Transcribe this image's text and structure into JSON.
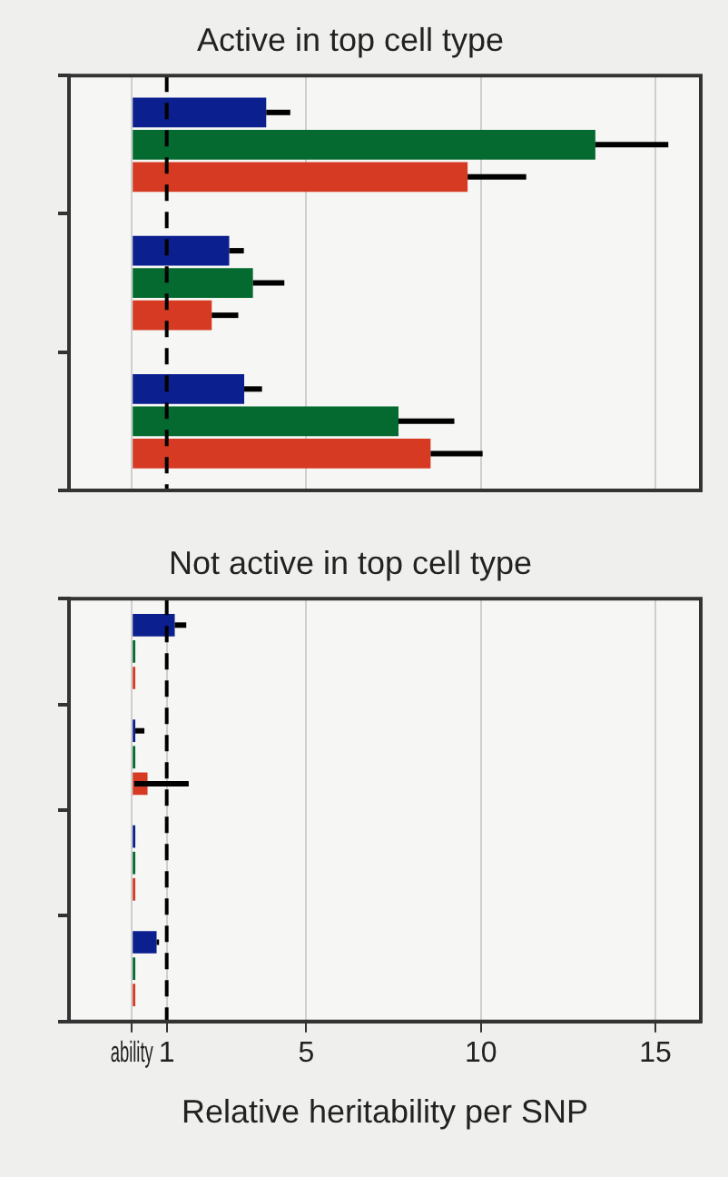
{
  "chart_data": [
    {
      "type": "bar",
      "orientation": "horizontal",
      "title": "Active in top cell type",
      "categories": [
        null,
        null,
        null
      ],
      "series": [
        {
          "color": "#0b1f8e",
          "values": [
            3.85,
            2.79,
            3.22
          ],
          "errors": [
            [
              3.85,
              4.54
            ],
            [
              2.79,
              3.21
            ],
            [
              3.22,
              3.73
            ]
          ]
        },
        {
          "color": "#046a2f",
          "values": [
            13.28,
            3.47,
            7.64
          ],
          "errors": [
            [
              13.28,
              15.37
            ],
            [
              3.47,
              4.37
            ],
            [
              7.64,
              9.24
            ]
          ]
        },
        {
          "color": "#d63a23",
          "values": [
            9.62,
            2.29,
            8.56
          ],
          "errors": [
            [
              9.62,
              11.3
            ],
            [
              2.29,
              3.05
            ],
            [
              8.56,
              10.05
            ]
          ]
        }
      ],
      "xlim": [
        -1.8,
        16.3
      ],
      "xticks": [
        0,
        5,
        10,
        15
      ],
      "grid": "x",
      "tick_labels": false,
      "ref_lines": [
        {
          "axis": "x",
          "value": 1,
          "label": null,
          "color": "#000000",
          "line_style": "dashed"
        }
      ]
    },
    {
      "type": "bar",
      "orientation": "horizontal",
      "title": "Not active in top cell type",
      "xlabel": "Relative heritability per SNP",
      "categories": [
        null,
        null,
        null,
        null
      ],
      "series": [
        {
          "color": "#0b1f8e",
          "values": [
            1.23,
            0.1,
            0.1,
            0.71
          ],
          "errors": [
            [
              1.23,
              1.56
            ],
            [
              0.1,
              0.36
            ],
            null,
            [
              0.71,
              0.78
            ]
          ]
        },
        {
          "color": "#046a2f",
          "values": [
            0.1,
            0.1,
            0.1,
            0.1
          ],
          "errors": [
            null,
            null,
            null,
            null
          ]
        },
        {
          "color": "#d63a23",
          "values": [
            0.1,
            0.45,
            0.1,
            0.1
          ],
          "errors": [
            null,
            [
              0.07,
              1.63
            ],
            null,
            null
          ]
        }
      ],
      "xlim": [
        -1.8,
        16.3
      ],
      "xticks": [
        {
          "value": 0,
          "label": "ability"
        },
        1,
        5,
        10,
        15
      ],
      "grid": "x",
      "tick_labels": "x",
      "ref_lines": [
        {
          "axis": "x",
          "value": 1,
          "label": null,
          "color": "#000000",
          "line_style": "dashed"
        }
      ]
    }
  ]
}
